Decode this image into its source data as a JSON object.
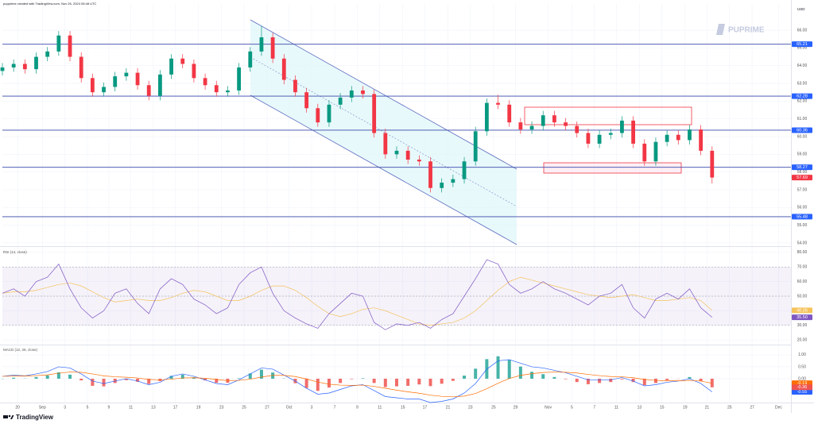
{
  "header_note": "pupprime created with TradingView.com, Nov 26, 2024 05:48 UTC",
  "watermark": "PUPRIME",
  "currency": "USD",
  "brand": "TradingView",
  "chart_data": [
    {
      "type": "candlestick",
      "x": [
        0,
        2,
        4,
        6,
        8,
        10,
        12,
        14,
        16,
        18,
        20,
        22,
        24,
        26,
        28,
        30,
        32,
        34,
        36,
        38,
        40,
        42,
        44,
        46,
        48,
        50,
        52,
        54,
        56,
        58,
        60,
        62,
        64,
        66,
        68,
        70,
        72,
        74,
        76,
        78,
        80,
        82,
        84,
        86,
        88,
        90,
        92,
        94,
        96,
        98,
        100,
        102,
        104,
        106,
        108,
        110,
        112,
        114,
        116,
        118,
        120,
        122,
        124,
        126
      ],
      "open": [
        63.7,
        63.9,
        64.1,
        63.8,
        64.5,
        64.8,
        65.7,
        64.5,
        63.3,
        62.5,
        62.8,
        63.4,
        63.6,
        62.9,
        62.3,
        63.5,
        64.4,
        64.1,
        63.3,
        62.9,
        62.5,
        62.6,
        63.9,
        64.8,
        65.6,
        64.4,
        63.2,
        62.5,
        61.6,
        60.8,
        61.8,
        62.2,
        62.6,
        62.4,
        60.2,
        59.0,
        59.2,
        58.7,
        58.6,
        57.1,
        57.4,
        57.6,
        58.6,
        60.3,
        61.9,
        61.8,
        60.8,
        60.4,
        60.6,
        61.2,
        60.8,
        60.6,
        60.2,
        59.6,
        60.1,
        60.2,
        60.9,
        59.6,
        58.6,
        59.7,
        60.1,
        59.8,
        60.4,
        59.2
      ],
      "high": [
        64.15,
        64.35,
        64.35,
        64.75,
        65.05,
        65.95,
        65.95,
        64.75,
        63.55,
        63.05,
        63.65,
        63.85,
        63.85,
        63.15,
        63.75,
        64.65,
        64.65,
        64.35,
        63.55,
        63.15,
        62.85,
        64.15,
        65.05,
        66.25,
        65.85,
        64.65,
        63.45,
        62.75,
        61.85,
        62.05,
        62.45,
        62.85,
        62.85,
        62.65,
        60.45,
        59.45,
        59.45,
        58.95,
        58.85,
        57.65,
        57.85,
        58.85,
        60.55,
        62.15,
        62.35,
        62.05,
        61.05,
        60.85,
        61.45,
        61.45,
        61.05,
        60.85,
        60.45,
        60.35,
        60.45,
        61.15,
        61.15,
        59.85,
        59.95,
        60.35,
        60.35,
        60.65,
        60.65,
        59.45
      ],
      "low": [
        63.45,
        63.65,
        63.55,
        63.55,
        64.25,
        64.55,
        64.25,
        63.05,
        62.25,
        62.25,
        62.55,
        63.15,
        62.65,
        62.05,
        62.05,
        63.25,
        63.85,
        63.05,
        62.65,
        62.25,
        62.25,
        62.35,
        63.65,
        64.55,
        64.15,
        62.95,
        62.25,
        61.35,
        60.55,
        60.55,
        61.55,
        61.95,
        62.15,
        59.95,
        58.75,
        58.75,
        58.45,
        58.35,
        56.85,
        56.85,
        57.15,
        57.35,
        58.35,
        60.05,
        61.55,
        60.55,
        60.15,
        60.15,
        60.35,
        60.55,
        60.35,
        59.95,
        59.35,
        59.35,
        59.85,
        59.95,
        59.35,
        58.35,
        58.35,
        59.45,
        59.55,
        59.55,
        58.95,
        57.35
      ],
      "close": [
        63.9,
        64.1,
        63.8,
        64.5,
        64.8,
        65.7,
        64.5,
        63.3,
        62.5,
        62.8,
        63.4,
        63.6,
        62.9,
        62.3,
        63.5,
        64.4,
        64.1,
        63.3,
        62.9,
        62.5,
        62.6,
        63.9,
        64.8,
        65.6,
        64.4,
        63.2,
        62.5,
        61.6,
        60.8,
        61.8,
        62.2,
        62.6,
        62.4,
        60.2,
        59.0,
        59.2,
        58.7,
        58.6,
        57.1,
        57.4,
        57.6,
        58.6,
        60.3,
        61.9,
        61.8,
        60.8,
        60.4,
        60.6,
        61.2,
        60.8,
        60.6,
        60.2,
        59.6,
        60.1,
        60.2,
        60.9,
        59.6,
        58.6,
        59.7,
        60.1,
        59.8,
        60.4,
        59.2,
        57.69
      ],
      "up_color": "#089981",
      "down_color": "#f23645",
      "levels": [
        65.21,
        62.28,
        60.36,
        58.27,
        55.48
      ],
      "level_color": "#3949ab",
      "level_tag_color": "#2962ff",
      "xlim": [
        0,
        140
      ],
      "ylim": [
        53.82,
        67.48
      ],
      "yticks": [
        {
          "value": 54,
          "label": "54.00"
        },
        {
          "value": 55,
          "label": "55.00"
        },
        {
          "value": 56,
          "label": "56.00"
        },
        {
          "value": 57,
          "label": "57.00"
        },
        {
          "value": 58,
          "label": "58.00"
        },
        {
          "value": 59,
          "label": "59.00"
        },
        {
          "value": 60,
          "label": "60.00"
        },
        {
          "value": 61,
          "label": "61.00"
        },
        {
          "value": 62,
          "label": "62.00"
        },
        {
          "value": 63,
          "label": "63.00"
        },
        {
          "value": 64,
          "label": "64.00"
        },
        {
          "value": 65,
          "label": "65.00"
        },
        {
          "value": 66,
          "label": "66.00"
        }
      ],
      "xticks": [
        {
          "value": 2.7,
          "label": "20"
        },
        {
          "value": 7.1,
          "label": "Sep"
        },
        {
          "value": 11.1,
          "label": "3"
        },
        {
          "value": 15.1,
          "label": "5"
        },
        {
          "value": 18.9,
          "label": "9"
        },
        {
          "value": 22.8,
          "label": "11"
        },
        {
          "value": 26.8,
          "label": "13"
        },
        {
          "value": 30.7,
          "label": "17"
        },
        {
          "value": 34.8,
          "label": "19"
        },
        {
          "value": 38.9,
          "label": "23"
        },
        {
          "value": 42.9,
          "label": "25"
        },
        {
          "value": 47,
          "label": "27"
        },
        {
          "value": 50.9,
          "label": "Oct"
        },
        {
          "value": 54.9,
          "label": "3"
        },
        {
          "value": 59,
          "label": "7"
        },
        {
          "value": 63,
          "label": "9"
        },
        {
          "value": 67,
          "label": "11"
        },
        {
          "value": 71.1,
          "label": "15"
        },
        {
          "value": 75,
          "label": "17"
        },
        {
          "value": 79.1,
          "label": "21"
        },
        {
          "value": 83.1,
          "label": "23"
        },
        {
          "value": 87.2,
          "label": "25"
        },
        {
          "value": 91.1,
          "label": "29"
        },
        {
          "value": 96.9,
          "label": "Nov"
        },
        {
          "value": 101.1,
          "label": "5"
        },
        {
          "value": 105.1,
          "label": "7"
        },
        {
          "value": 109,
          "label": "11"
        },
        {
          "value": 113.1,
          "label": "13"
        },
        {
          "value": 117.1,
          "label": "15"
        },
        {
          "value": 121.2,
          "label": "19"
        },
        {
          "value": 125.1,
          "label": "21"
        },
        {
          "value": 129.1,
          "label": "25"
        },
        {
          "value": 133.1,
          "label": "27"
        },
        {
          "value": 137.8,
          "label": "Dec"
        }
      ],
      "grid": true
    },
    {
      "type": "line",
      "title": "RSI (14, close)",
      "x": [
        0,
        2,
        4,
        6,
        8,
        10,
        12,
        14,
        16,
        18,
        20,
        22,
        24,
        26,
        28,
        30,
        32,
        34,
        36,
        38,
        40,
        42,
        44,
        46,
        48,
        50,
        52,
        54,
        56,
        58,
        60,
        62,
        64,
        66,
        68,
        70,
        72,
        74,
        76,
        78,
        80,
        82,
        84,
        86,
        88,
        90,
        92,
        94,
        96,
        98,
        100,
        102,
        104,
        106,
        108,
        110,
        112,
        114,
        116,
        118,
        120,
        122,
        124,
        126
      ],
      "series": [
        {
          "color": "#f5c35b",
          "values": [
            52,
            53,
            53,
            54,
            56,
            58,
            59,
            57,
            53,
            49,
            46,
            47,
            48,
            47,
            47,
            49,
            52,
            54,
            53,
            50,
            47,
            47,
            50,
            54,
            57,
            57,
            54,
            49,
            43,
            38,
            36,
            38,
            41,
            42,
            40,
            37,
            34,
            31,
            30,
            31,
            32,
            35,
            40,
            47,
            54,
            60,
            63,
            61,
            59,
            57,
            55,
            53,
            51,
            50,
            49,
            50,
            51,
            49,
            47,
            47,
            48,
            49,
            47,
            40.26
          ]
        },
        {
          "color": "#7e57c2",
          "values": [
            52,
            55,
            50,
            60,
            63,
            72,
            55,
            42,
            35,
            40,
            52,
            55,
            45,
            38,
            55,
            62,
            58,
            48,
            44,
            38,
            42,
            58,
            66,
            70,
            52,
            40,
            35,
            31,
            28,
            38,
            45,
            52,
            50,
            32,
            27,
            31,
            30,
            32,
            28,
            34,
            38,
            50,
            62,
            75,
            72,
            58,
            52,
            55,
            60,
            55,
            52,
            48,
            44,
            50,
            52,
            58,
            42,
            35,
            48,
            52,
            48,
            55,
            42,
            35.5
          ],
          "last_label": "35.50"
        }
      ],
      "band": [
        30,
        70
      ],
      "band_color": "#7e57c2",
      "guides": [
        70,
        50,
        30
      ],
      "xlim": [
        0,
        140
      ],
      "ylim": [
        17.9,
        82.1
      ],
      "yticks": [
        {
          "value": 20,
          "label": "20.00"
        },
        {
          "value": 30,
          "label": "30.00"
        },
        {
          "value": 40,
          "label": "40.00"
        },
        {
          "value": 50,
          "label": "50.00"
        },
        {
          "value": 60,
          "label": "60.00"
        },
        {
          "value": 70,
          "label": "70.00"
        },
        {
          "value": 80,
          "label": "80.00"
        }
      ],
      "grid": true
    },
    {
      "type": "macd",
      "title": "MACD (12, 26, close)",
      "x": [
        0,
        2,
        4,
        6,
        8,
        10,
        12,
        14,
        16,
        18,
        20,
        22,
        24,
        26,
        28,
        30,
        32,
        34,
        36,
        38,
        40,
        42,
        44,
        46,
        48,
        50,
        52,
        54,
        56,
        58,
        60,
        62,
        64,
        66,
        68,
        70,
        72,
        74,
        76,
        78,
        80,
        82,
        84,
        86,
        88,
        90,
        92,
        94,
        96,
        98,
        100,
        102,
        104,
        106,
        108,
        110,
        112,
        114,
        116,
        118,
        120,
        122,
        124,
        126
      ],
      "histogram": {
        "up_color": "#26a69a",
        "down_color": "#ef5350",
        "values": [
          0,
          0.04,
          0.01,
          0.07,
          0.14,
          0.27,
          0.17,
          -0.07,
          -0.3,
          -0.32,
          -0.18,
          -0.06,
          -0.13,
          -0.22,
          -0.1,
          0.12,
          0.17,
          0.06,
          -0.07,
          -0.17,
          -0.17,
          0.02,
          0.22,
          0.38,
          0.26,
          0.01,
          -0.19,
          -0.39,
          -0.51,
          -0.37,
          -0.18,
          -0.02,
          0.02,
          -0.18,
          -0.35,
          -0.32,
          -0.3,
          -0.24,
          -0.31,
          -0.21,
          -0.09,
          0.13,
          0.42,
          0.82,
          0.94,
          0.79,
          0.51,
          0.29,
          0.19,
          0.07,
          -0.02,
          -0.14,
          -0.23,
          -0.18,
          -0.14,
          -0.03,
          -0.14,
          -0.27,
          -0.18,
          -0.06,
          -0.01,
          0.07,
          -0.1,
          -0.36
        ]
      },
      "series": [
        {
          "color": "#2962ff",
          "values": [
            0.1,
            0.15,
            0.12,
            0.2,
            0.3,
            0.5,
            0.45,
            0.2,
            -0.1,
            -0.2,
            -0.1,
            0.0,
            -0.1,
            -0.25,
            -0.15,
            0.1,
            0.2,
            0.1,
            -0.05,
            -0.2,
            -0.25,
            -0.05,
            0.2,
            0.45,
            0.4,
            0.15,
            -0.1,
            -0.4,
            -0.65,
            -0.6,
            -0.45,
            -0.3,
            -0.25,
            -0.5,
            -0.75,
            -0.8,
            -0.85,
            -0.85,
            -1.0,
            -0.95,
            -0.85,
            -0.6,
            -0.2,
            0.4,
            0.75,
            0.8,
            0.65,
            0.5,
            0.45,
            0.35,
            0.25,
            0.1,
            -0.05,
            -0.05,
            -0.05,
            0.05,
            -0.1,
            -0.3,
            -0.25,
            -0.15,
            -0.1,
            0.0,
            -0.2,
            -0.55
          ]
        },
        {
          "color": "#ff6d00",
          "values": [
            0.1,
            0.11,
            0.11,
            0.13,
            0.16,
            0.23,
            0.28,
            0.27,
            0.2,
            0.12,
            0.08,
            0.06,
            0.03,
            -0.03,
            -0.05,
            -0.02,
            0.03,
            0.04,
            0.02,
            -0.03,
            -0.08,
            -0.07,
            -0.02,
            0.07,
            0.14,
            0.14,
            0.09,
            -0.01,
            -0.14,
            -0.23,
            -0.27,
            -0.28,
            -0.27,
            -0.32,
            -0.4,
            -0.48,
            -0.55,
            -0.61,
            -0.69,
            -0.74,
            -0.76,
            -0.73,
            -0.62,
            -0.42,
            -0.19,
            0.01,
            0.14,
            0.21,
            0.26,
            0.28,
            0.27,
            0.24,
            0.18,
            0.13,
            0.09,
            0.08,
            0.04,
            -0.03,
            -0.07,
            -0.09,
            -0.09,
            -0.07,
            -0.1,
            -0.19
          ]
        }
      ],
      "xlim": [
        0,
        140
      ],
      "ylim": [
        -1.0,
        1.33
      ],
      "yticks": [
        {
          "value": 0,
          "label": "0.00"
        },
        {
          "value": 0.5,
          "label": "0.50"
        },
        {
          "value": 1,
          "label": "1.00"
        }
      ],
      "grid": true
    }
  ]
}
